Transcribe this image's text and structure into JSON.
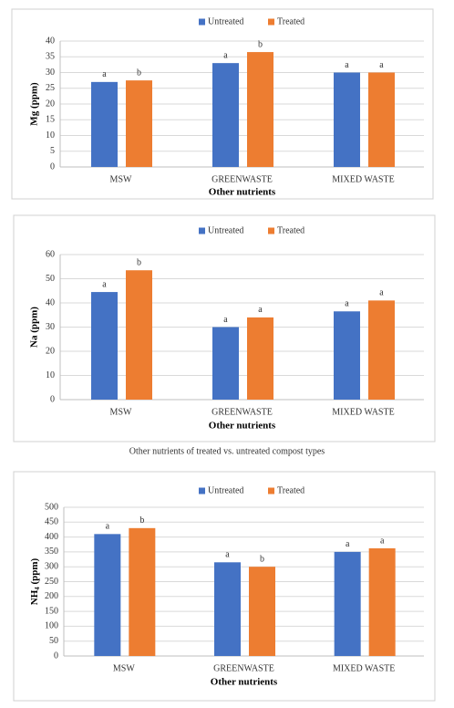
{
  "chart_data": [
    {
      "type": "bar",
      "ylabel": "Mg (ppm)",
      "xlabel": "Other nutrients",
      "categories": [
        "MSW",
        "GREENWASTE",
        "MIXED WASTE"
      ],
      "series": [
        {
          "name": "Untreated",
          "color": "#4472c4",
          "values": [
            27,
            33,
            30
          ],
          "letters": [
            "a",
            "a",
            "a"
          ]
        },
        {
          "name": "Treated",
          "color": "#ed7d31",
          "values": [
            27.5,
            36.5,
            30
          ],
          "letters": [
            "b",
            "b",
            "a"
          ]
        }
      ],
      "ylim": [
        0,
        40
      ],
      "yticks": [
        0,
        5,
        10,
        15,
        20,
        25,
        30,
        35,
        40
      ],
      "grid": true
    },
    {
      "type": "bar",
      "ylabel": "Na (ppm)",
      "xlabel": "Other nutrients",
      "categories": [
        "MSW",
        "GREENWASTE",
        "MIXED WASTE"
      ],
      "series": [
        {
          "name": "Untreated",
          "color": "#4472c4",
          "values": [
            44.5,
            30,
            36.5
          ],
          "letters": [
            "a",
            "a",
            "a"
          ]
        },
        {
          "name": "Treated",
          "color": "#ed7d31",
          "values": [
            53.5,
            34,
            41
          ],
          "letters": [
            "b",
            "a",
            "a"
          ]
        }
      ],
      "ylim": [
        0,
        60
      ],
      "yticks": [
        0,
        10,
        20,
        30,
        40,
        50,
        60
      ],
      "grid": true
    },
    {
      "type": "bar",
      "ylabel": {
        "main": "NH",
        "sub": "4",
        "rest": " (ppm)"
      },
      "xlabel": "Other nutrients",
      "categories": [
        "MSW",
        "GREENWASTE",
        "MIXED WASTE"
      ],
      "series": [
        {
          "name": "Untreated",
          "color": "#4472c4",
          "values": [
            410,
            315,
            350
          ],
          "letters": [
            "a",
            "a",
            "a"
          ]
        },
        {
          "name": "Treated",
          "color": "#ed7d31",
          "values": [
            430,
            300,
            362
          ],
          "letters": [
            "b",
            "b",
            "a"
          ]
        }
      ],
      "ylim": [
        0,
        500
      ],
      "yticks": [
        0,
        50,
        100,
        150,
        200,
        250,
        300,
        350,
        400,
        450,
        500
      ],
      "grid": true
    }
  ],
  "caption": "Other nutrients of treated vs. untreated compost types"
}
